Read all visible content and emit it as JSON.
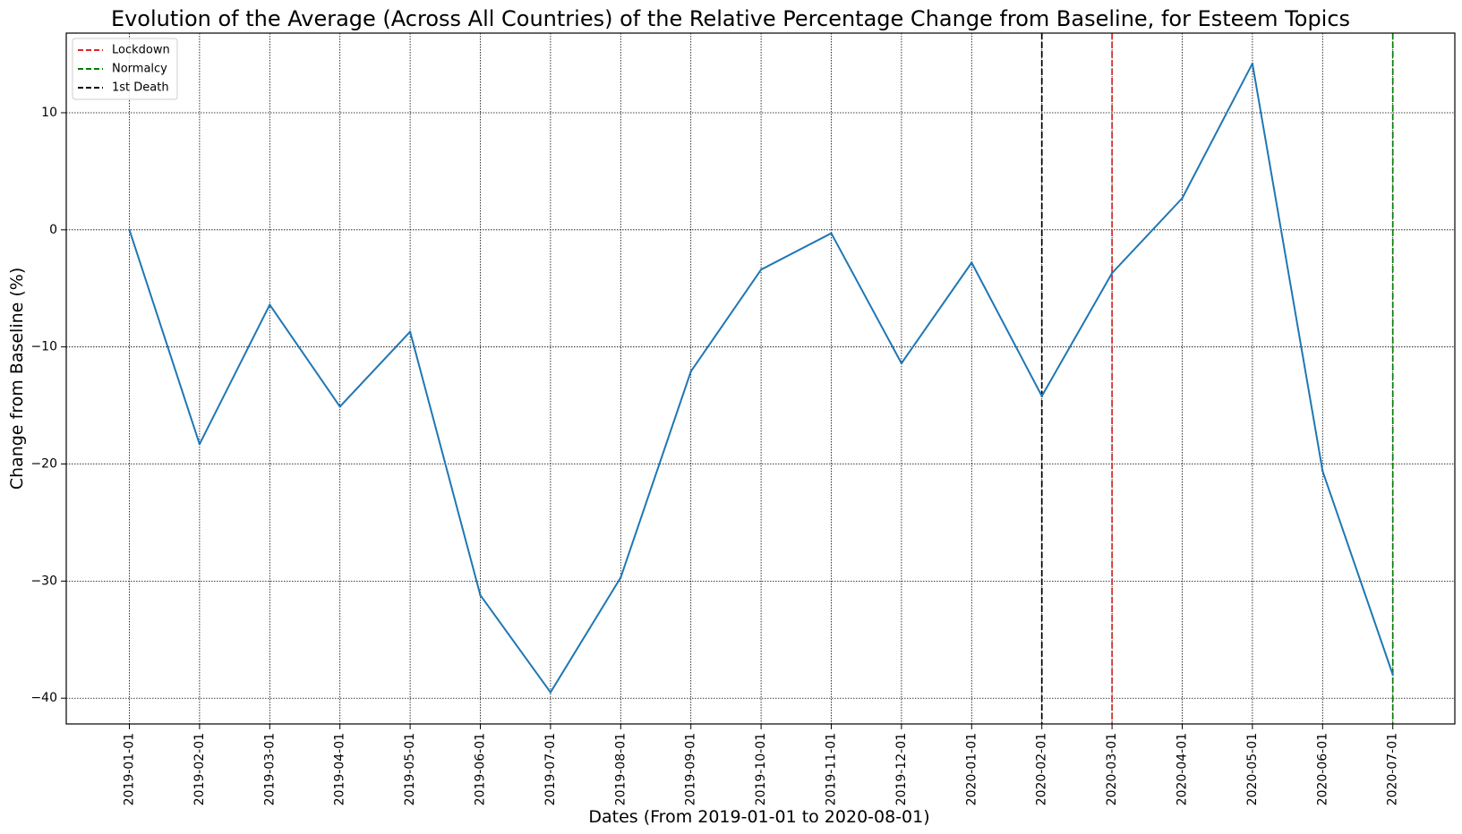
{
  "chart_data": {
    "type": "line",
    "title": "Evolution of the Average (Across All Countries) of the Relative Percentage Change from Baseline, for Esteem Topics",
    "xlabel": "Dates (From 2019-01-01 to 2020-08-01)",
    "ylabel": "Change from Baseline (%)",
    "ylim": [
      -42.2,
      16.8
    ],
    "yticks": [
      10,
      0,
      -10,
      -20,
      -30,
      -40
    ],
    "ytick_labels": [
      "10",
      "0",
      "−10",
      "−20",
      "−30",
      "−40"
    ],
    "grid": true,
    "x": [
      "2019-01-01",
      "2019-02-01",
      "2019-03-01",
      "2019-04-01",
      "2019-05-01",
      "2019-06-01",
      "2019-07-01",
      "2019-08-01",
      "2019-09-01",
      "2019-10-01",
      "2019-11-01",
      "2019-12-01",
      "2020-01-01",
      "2020-02-01",
      "2020-03-01",
      "2020-04-01",
      "2020-05-01",
      "2020-06-01",
      "2020-07-01"
    ],
    "series": [
      {
        "color": "#1f77b4",
        "values": [
          0.0,
          -18.3,
          -6.4,
          -15.1,
          -8.7,
          -31.2,
          -39.5,
          -29.7,
          -12.1,
          -3.4,
          -0.3,
          -11.4,
          -2.8,
          -14.2,
          -3.7,
          2.7,
          14.2,
          -20.6,
          -38.0
        ]
      }
    ],
    "vlines": [
      {
        "name": "Lockdown",
        "x": "2020-03-01",
        "color": "#d62728"
      },
      {
        "name": "Normalcy",
        "x": "2020-07-01",
        "color": "#008000"
      },
      {
        "name": "1st Death",
        "x": "2020-02-01",
        "color": "#000000"
      }
    ],
    "legend": {
      "placement": "top-left",
      "entries": [
        {
          "label": "Lockdown",
          "color": "#d62728"
        },
        {
          "label": "Normalcy",
          "color": "#008000"
        },
        {
          "label": "1st Death",
          "color": "#000000"
        }
      ]
    }
  }
}
